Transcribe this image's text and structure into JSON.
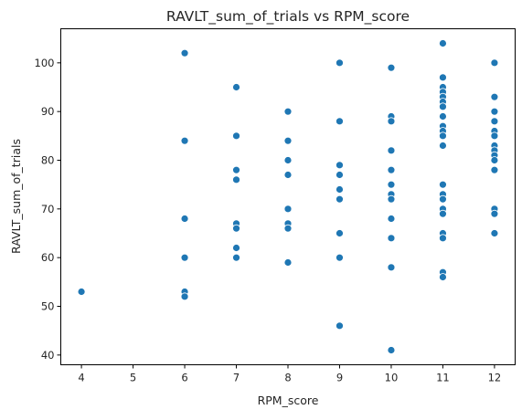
{
  "chart_data": {
    "type": "scatter",
    "title": "RAVLT_sum_of_trials vs RPM_score",
    "xlabel": "RPM_score",
    "ylabel": "RAVLT_sum_of_trials",
    "xlim": [
      3.6,
      12.4
    ],
    "ylim": [
      38,
      107
    ],
    "xticks": [
      4,
      5,
      6,
      7,
      8,
      9,
      10,
      11,
      12
    ],
    "yticks": [
      40,
      50,
      60,
      70,
      80,
      90,
      100
    ],
    "grid": false,
    "marker_color": "#1f77b4",
    "marker_edge_color": "#ffffff",
    "points": [
      [
        4,
        53
      ],
      [
        6,
        102
      ],
      [
        6,
        84
      ],
      [
        6,
        68
      ],
      [
        6,
        60
      ],
      [
        6,
        53
      ],
      [
        6,
        52
      ],
      [
        7,
        95
      ],
      [
        7,
        85
      ],
      [
        7,
        78
      ],
      [
        7,
        76
      ],
      [
        7,
        67
      ],
      [
        7,
        66
      ],
      [
        7,
        62
      ],
      [
        7,
        60
      ],
      [
        8,
        90
      ],
      [
        8,
        84
      ],
      [
        8,
        80
      ],
      [
        8,
        77
      ],
      [
        8,
        70
      ],
      [
        8,
        67
      ],
      [
        8,
        66
      ],
      [
        8,
        59
      ],
      [
        9,
        100
      ],
      [
        9,
        88
      ],
      [
        9,
        79
      ],
      [
        9,
        77
      ],
      [
        9,
        74
      ],
      [
        9,
        72
      ],
      [
        9,
        65
      ],
      [
        9,
        60
      ],
      [
        9,
        46
      ],
      [
        10,
        99
      ],
      [
        10,
        89
      ],
      [
        10,
        88
      ],
      [
        10,
        82
      ],
      [
        10,
        78
      ],
      [
        10,
        75
      ],
      [
        10,
        73
      ],
      [
        10,
        72
      ],
      [
        10,
        68
      ],
      [
        10,
        64
      ],
      [
        10,
        58
      ],
      [
        10,
        41
      ],
      [
        11,
        104
      ],
      [
        11,
        97
      ],
      [
        11,
        95
      ],
      [
        11,
        94
      ],
      [
        11,
        93
      ],
      [
        11,
        92
      ],
      [
        11,
        91
      ],
      [
        11,
        89
      ],
      [
        11,
        87
      ],
      [
        11,
        86
      ],
      [
        11,
        85
      ],
      [
        11,
        83
      ],
      [
        11,
        75
      ],
      [
        11,
        73
      ],
      [
        11,
        72
      ],
      [
        11,
        70
      ],
      [
        11,
        69
      ],
      [
        11,
        65
      ],
      [
        11,
        64
      ],
      [
        11,
        57
      ],
      [
        11,
        56
      ],
      [
        12,
        100
      ],
      [
        12,
        93
      ],
      [
        12,
        90
      ],
      [
        12,
        88
      ],
      [
        12,
        86
      ],
      [
        12,
        85
      ],
      [
        12,
        83
      ],
      [
        12,
        82
      ],
      [
        12,
        81
      ],
      [
        12,
        80
      ],
      [
        12,
        78
      ],
      [
        12,
        70
      ],
      [
        12,
        69
      ],
      [
        12,
        65
      ]
    ]
  }
}
